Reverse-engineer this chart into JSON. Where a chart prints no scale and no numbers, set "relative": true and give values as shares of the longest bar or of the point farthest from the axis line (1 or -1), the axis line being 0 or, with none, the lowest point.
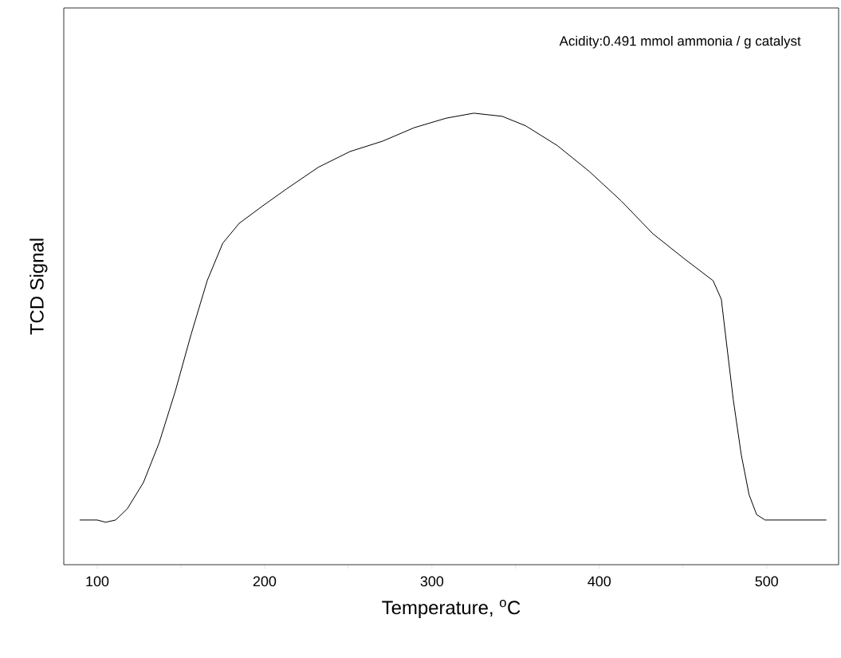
{
  "chart_data": {
    "type": "line",
    "xlabel": "Temperature, $^{o}$C",
    "ylabel": "TCD Signal",
    "annotations": [
      "Acidity:0.491 mmol ammonia / g catalyst"
    ],
    "relative": true,
    "color": "#000000",
    "xlim": [
      80,
      543
    ],
    "xticks": [
      100,
      {
        "value": 150,
        "label": null
      },
      200,
      {
        "value": 250,
        "label": null
      },
      300,
      {
        "value": 350,
        "label": null
      },
      400,
      {
        "value": 450,
        "label": null
      },
      500
    ],
    "x": [
      89.5,
      100,
      105,
      111,
      118,
      127.6,
      137,
      146.7,
      156,
      165.7,
      175,
      184.8,
      199,
      213,
      232,
      251,
      270.5,
      289.5,
      308.6,
      325,
      342,
      356,
      375,
      394,
      413,
      432,
      451,
      468,
      472.9,
      476,
      480,
      484.8,
      489.5,
      494,
      499,
      535.7
    ],
    "values": [
      0.099,
      0.099,
      0.094,
      0.099,
      0.124,
      0.182,
      0.27,
      0.385,
      0.509,
      0.629,
      0.712,
      0.756,
      0.795,
      0.832,
      0.88,
      0.915,
      0.938,
      0.968,
      0.989,
      1.0,
      0.993,
      0.972,
      0.928,
      0.871,
      0.806,
      0.733,
      0.677,
      0.629,
      0.588,
      0.491,
      0.367,
      0.244,
      0.155,
      0.111,
      0.099,
      0.099
    ]
  }
}
